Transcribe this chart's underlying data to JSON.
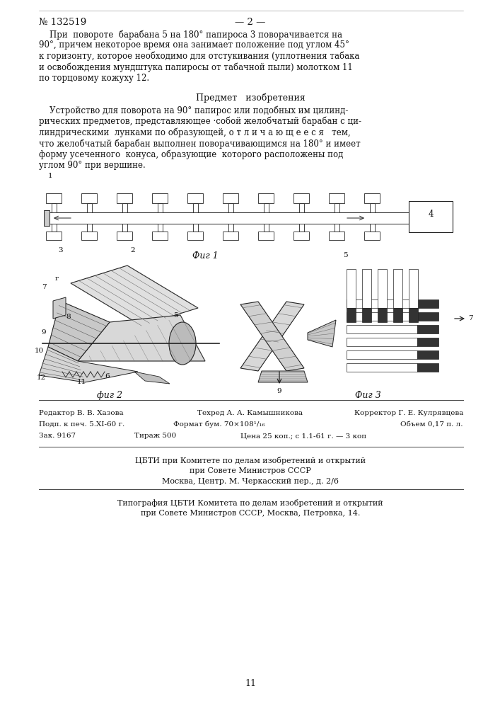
{
  "bg_color": "#ffffff",
  "text_color": "#111111",
  "page_number": "№ 132519",
  "page_marker": "— 2 —",
  "paragraph1_line1": "    При  повороте  барабана 5 на 180° папироса 3 поворачивается на",
  "paragraph1_line2": "90°, причем некоторое время она занимает положение под углом 45°",
  "paragraph1_line3": "к горизонту, которое необходимо для отстукивания (уплотнения табака",
  "paragraph1_line4": "и освобождения мундштука папиросы от табачной пыли) молотком 11",
  "paragraph1_line5": "по торцовому кожуху 12.",
  "section_title": "Предмет   изобретения",
  "paragraph2_line1": "    Устройство для поворота на 90° папирос или подобных им цилинд-",
  "paragraph2_line2": "рических предметов, представляющее ·собой желобчатый барабан с ци-",
  "paragraph2_line3": "линдрическими  лунками по образующей, о т л и ч а ю щ е е с я   тем,",
  "paragraph2_line4": "что желобчатый барабан выполнен поворачивающимся на 180° и имеет",
  "paragraph2_line5": "форму усеченного  конуса, образующие  которого расположены под",
  "paragraph2_line6": "углом 90° при вершине.",
  "fig1_caption": "Фиг 1",
  "fig2_caption": "фиг 2",
  "fig3_caption": "Фиг 3",
  "footer_editor": "Редактор В. В. Хазова",
  "footer_tech": "Техред А. А. Камышникова",
  "footer_corr": "Корректор Г. Е. Кулрявцева",
  "footer_podp": "Подп. к печ. 5.XI-60 г.",
  "footer_format": "Формат бум. 70×108¹/₁₆",
  "footer_obem": "Объем 0,17 п. л.",
  "footer_zak": "Зак. 9167",
  "footer_tirazh": "Тираж 500",
  "footer_cena": "Цена 25 коп.; с 1.1-61 г. — 3 коп",
  "footer_cbti1": "ЦБТИ при Комитете по делам изобретений и открытий",
  "footer_cbti2": "при Совете Министров СССР",
  "footer_cbti3": "Москва, Центр. М. Черкасский пер., д. 2/6",
  "footer_typo1": "Типография ЦБТИ Комитета по делам изобретений и открытий",
  "footer_typo2": "при Совете Министров СССР, Москва, Петровка, 14.",
  "page_num_bottom": "11"
}
